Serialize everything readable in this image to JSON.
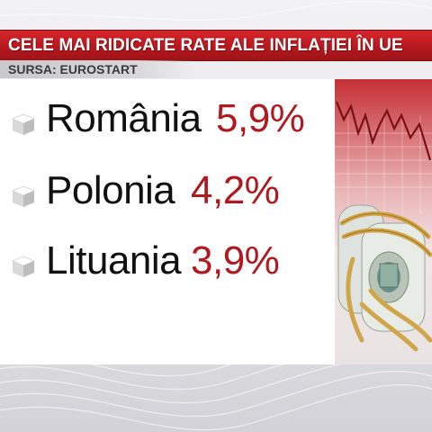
{
  "title": "CELE MAI RIDICATE RATE ALE INFLAȚIEI ÎN UE",
  "source": "SURSA: EUROSTART",
  "colors": {
    "title_bar": "#b3171d",
    "rate_text": "#b1191f",
    "country_text": "#111111"
  },
  "rows": [
    {
      "country": "România",
      "rate": "5,9%",
      "icon": "cube-bullet-icon"
    },
    {
      "country": "Polonia",
      "rate": "4,2%",
      "icon": "cube-bullet-icon"
    },
    {
      "country": "Lituania",
      "rate": "3,9%",
      "icon": "cube-bullet-icon"
    }
  ],
  "image": {
    "subject": "rolled-banknotes-tied-with-rope-icon"
  }
}
